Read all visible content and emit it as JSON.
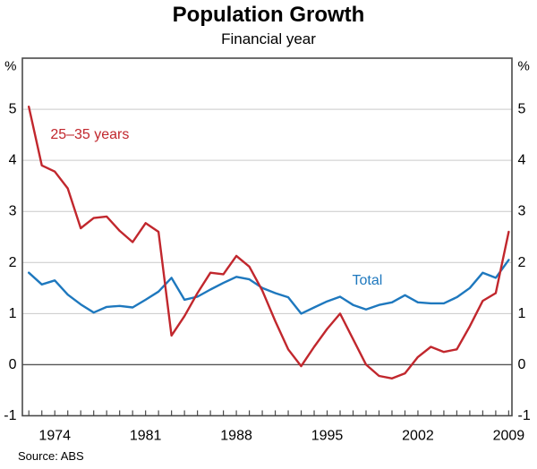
{
  "header": {
    "title": "Population Growth",
    "subtitle": "Financial year"
  },
  "footer": {
    "source": "Source: ABS"
  },
  "axes": {
    "unit_symbol": "%",
    "y_tick_labels": [
      5,
      4,
      3,
      2,
      1,
      0,
      -1
    ],
    "x_tick_labels": [
      1974,
      1981,
      1988,
      1995,
      2002,
      2009
    ]
  },
  "colors": {
    "red_series": "#c1272d",
    "blue_series": "#1e78be",
    "gridline": "#c9c9c9",
    "zero_line": "#555555",
    "frame": "#4a4a4a",
    "text": "#000000"
  },
  "chart_data": {
    "type": "line",
    "title": "Population Growth",
    "subtitle": "Financial year",
    "ylabel": "%",
    "xlim": [
      1971.5,
      2009.25
    ],
    "ylim": [
      -1,
      6
    ],
    "gridlines": [
      0,
      1,
      2,
      3,
      4,
      5
    ],
    "grid": true,
    "legend_position": "inline-annotations",
    "x": [
      1972,
      1973,
      1974,
      1975,
      1976,
      1977,
      1978,
      1979,
      1980,
      1981,
      1982,
      1983,
      1984,
      1985,
      1986,
      1987,
      1988,
      1989,
      1990,
      1991,
      1992,
      1993,
      1994,
      1995,
      1996,
      1997,
      1998,
      1999,
      2000,
      2001,
      2002,
      2003,
      2004,
      2005,
      2006,
      2007,
      2008,
      2009
    ],
    "series": [
      {
        "name": "Total",
        "color": "#1e78be",
        "values": [
          1.8,
          1.57,
          1.65,
          1.37,
          1.18,
          1.02,
          1.13,
          1.15,
          1.12,
          1.27,
          1.43,
          1.7,
          1.27,
          1.33,
          1.47,
          1.6,
          1.72,
          1.67,
          1.5,
          1.4,
          1.32,
          1.0,
          1.12,
          1.24,
          1.33,
          1.17,
          1.08,
          1.17,
          1.22,
          1.36,
          1.22,
          1.2,
          1.2,
          1.32,
          1.5,
          1.8,
          1.7,
          2.05
        ]
      },
      {
        "name": "25–35 years",
        "color": "#c1272d",
        "values": [
          5.05,
          3.9,
          3.78,
          3.45,
          2.67,
          2.87,
          2.9,
          2.62,
          2.4,
          2.77,
          2.6,
          0.57,
          0.95,
          1.4,
          1.8,
          1.77,
          2.13,
          1.92,
          1.45,
          0.85,
          0.3,
          -0.03,
          0.35,
          0.7,
          1.0,
          0.5,
          0.0,
          -0.22,
          -0.27,
          -0.17,
          0.15,
          0.35,
          0.25,
          0.3,
          0.75,
          1.25,
          1.4,
          2.6
        ]
      }
    ],
    "annotations": [
      {
        "label": "25–35 years",
        "x": 1976.7,
        "y": 4.5,
        "color": "#c1272d",
        "name": "series-label-25-35-years"
      },
      {
        "label": "Total",
        "x": 1998.1,
        "y": 1.65,
        "color": "#1e78be",
        "name": "series-label-total"
      }
    ]
  }
}
